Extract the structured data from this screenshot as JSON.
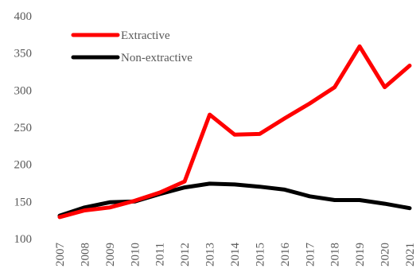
{
  "chart_data": {
    "type": "line",
    "title": "",
    "xlabel": "",
    "ylabel": "",
    "x": [
      "2007",
      "2008",
      "2009",
      "2010",
      "2011",
      "2012",
      "2013",
      "2014",
      "2015",
      "2016",
      "2017",
      "2018",
      "2019",
      "2020",
      "2021"
    ],
    "ylim": [
      100,
      400
    ],
    "yticks": [
      "100",
      "150",
      "200",
      "250",
      "300",
      "350",
      "400"
    ],
    "grid": false,
    "legend_position": "top-left",
    "series": [
      {
        "name": "Extractive",
        "color": "#ff0000",
        "values": [
          129,
          138,
          142,
          151,
          162,
          177,
          267,
          240,
          241,
          262,
          282,
          304,
          359,
          304,
          333
        ]
      },
      {
        "name": "Non-extractive",
        "color": "#000000",
        "values": [
          131,
          142,
          149,
          150,
          160,
          169,
          174,
          173,
          170,
          166,
          157,
          152,
          152,
          147,
          141
        ]
      }
    ]
  }
}
